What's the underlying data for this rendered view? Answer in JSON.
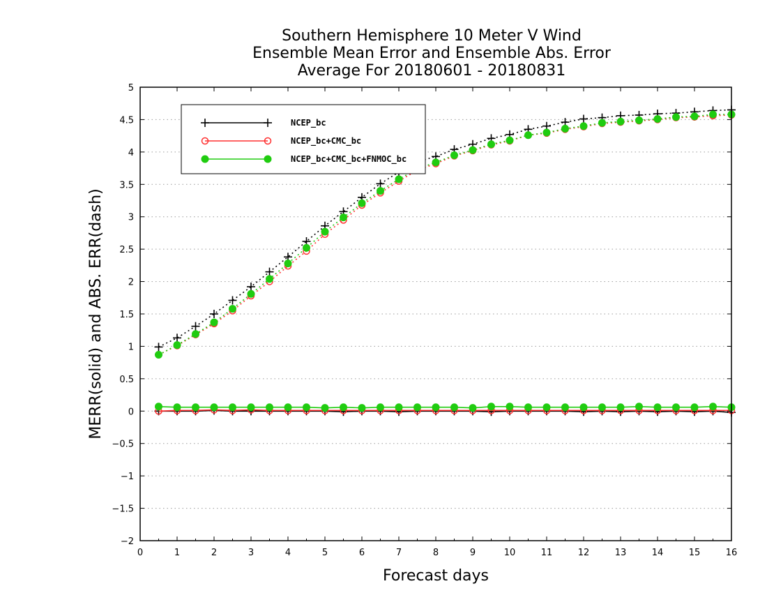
{
  "chart_data": {
    "type": "line",
    "title": [
      "Southern Hemisphere 10 Meter V Wind",
      "Ensemble Mean Error and Ensemble Abs. Error",
      "Average For 20180601 - 20180831"
    ],
    "xlabel": "Forecast days",
    "ylabel": "MERR(solid) and ABS. ERR(dash)",
    "xlim": [
      0,
      16
    ],
    "ylim": [
      -2,
      5
    ],
    "x_ticks": [
      "0",
      "1",
      "2",
      "3",
      "4",
      "5",
      "6",
      "7",
      "8",
      "9",
      "10",
      "11",
      "12",
      "13",
      "14",
      "15",
      "16"
    ],
    "y_ticks": [
      "−2",
      "−1.5",
      "−1",
      "−0.5",
      "0",
      "0.5",
      "1",
      "1.5",
      "2",
      "2.5",
      "3",
      "3.5",
      "4",
      "4.5",
      "5"
    ],
    "y_tick_values": [
      -2,
      -1.5,
      -1,
      -0.5,
      0,
      0.5,
      1,
      1.5,
      2,
      2.5,
      3,
      3.5,
      4,
      4.5,
      5
    ],
    "grid": "horizontal dotted",
    "legend_position": "top-left",
    "x": [
      0.5,
      1,
      1.5,
      2,
      2.5,
      3,
      3.5,
      4,
      4.5,
      5,
      5.5,
      6,
      6.5,
      7,
      7.5,
      8,
      8.5,
      9,
      9.5,
      10,
      10.5,
      11,
      11.5,
      12,
      12.5,
      13,
      13.5,
      14,
      14.5,
      15,
      15.5,
      16
    ],
    "series": [
      {
        "name": "NCEP_bc",
        "color": "#000000",
        "marker": "plus",
        "merr": [
          0.0,
          0.0,
          0.0,
          0.01,
          0.0,
          0.0,
          0.0,
          0.0,
          0.0,
          0.0,
          -0.01,
          0.0,
          0.0,
          -0.01,
          0.0,
          0.0,
          0.0,
          0.0,
          -0.01,
          0.0,
          0.0,
          0.0,
          0.0,
          -0.01,
          0.0,
          -0.01,
          0.0,
          -0.01,
          0.0,
          -0.01,
          0.0,
          -0.02
        ],
        "abs_err": [
          0.99,
          1.13,
          1.31,
          1.5,
          1.71,
          1.92,
          2.15,
          2.38,
          2.62,
          2.86,
          3.08,
          3.3,
          3.51,
          3.69,
          3.85,
          3.93,
          4.04,
          4.12,
          4.21,
          4.27,
          4.35,
          4.4,
          4.46,
          4.51,
          4.53,
          4.56,
          4.57,
          4.59,
          4.6,
          4.62,
          4.64,
          4.65
        ]
      },
      {
        "name": "NCEP_bc+CMC_bc",
        "color": "#ff3030",
        "marker": "open-circle",
        "merr": [
          0.0,
          0.01,
          0.01,
          0.02,
          0.01,
          0.02,
          0.01,
          0.01,
          0.01,
          0.01,
          0.01,
          0.01,
          0.01,
          0.01,
          0.01,
          0.01,
          0.01,
          0.01,
          0.01,
          0.01,
          0.01,
          0.01,
          0.01,
          0.01,
          0.01,
          0.01,
          0.01,
          0.01,
          0.01,
          0.01,
          0.01,
          0.01
        ],
        "abs_err": [
          0.87,
          1.01,
          1.18,
          1.35,
          1.55,
          1.78,
          2.0,
          2.24,
          2.47,
          2.73,
          2.95,
          3.18,
          3.37,
          3.55,
          3.72,
          3.82,
          3.94,
          4.02,
          4.11,
          4.17,
          4.26,
          4.29,
          4.35,
          4.39,
          4.44,
          4.46,
          4.48,
          4.5,
          4.53,
          4.54,
          4.56,
          4.57
        ]
      },
      {
        "name": "NCEP_bc+CMC_bc+FNMOC_bc",
        "color": "#20cc10",
        "marker": "filled-circle",
        "merr": [
          0.07,
          0.06,
          0.06,
          0.06,
          0.06,
          0.06,
          0.06,
          0.06,
          0.06,
          0.05,
          0.06,
          0.05,
          0.06,
          0.06,
          0.06,
          0.06,
          0.06,
          0.05,
          0.07,
          0.07,
          0.06,
          0.06,
          0.06,
          0.06,
          0.06,
          0.06,
          0.07,
          0.06,
          0.06,
          0.06,
          0.07,
          0.06
        ],
        "abs_err": [
          0.87,
          1.02,
          1.19,
          1.37,
          1.58,
          1.81,
          2.04,
          2.28,
          2.52,
          2.77,
          2.99,
          3.21,
          3.4,
          3.58,
          3.74,
          3.84,
          3.95,
          4.03,
          4.12,
          4.18,
          4.26,
          4.3,
          4.36,
          4.4,
          4.45,
          4.47,
          4.49,
          4.51,
          4.54,
          4.55,
          4.58,
          4.58
        ]
      }
    ]
  }
}
